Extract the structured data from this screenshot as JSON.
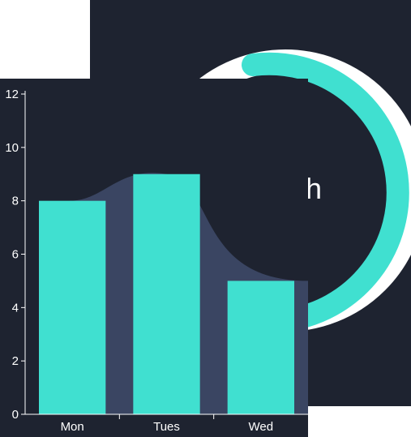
{
  "ring_card": {
    "center_text": "h",
    "track_color": "#ffffff",
    "progress_color": "#40e0d0"
  },
  "chart_data": {
    "type": "bar",
    "categories": [
      "Mon",
      "Tues",
      "Wed"
    ],
    "values": [
      8,
      9,
      5
    ],
    "yticks": [
      0,
      2,
      4,
      6,
      8,
      10,
      12
    ],
    "ylim": [
      0,
      12
    ],
    "grid": false,
    "bar_color": "#40e0d0",
    "area_color": "#3a4562",
    "background": "#1e2330"
  }
}
